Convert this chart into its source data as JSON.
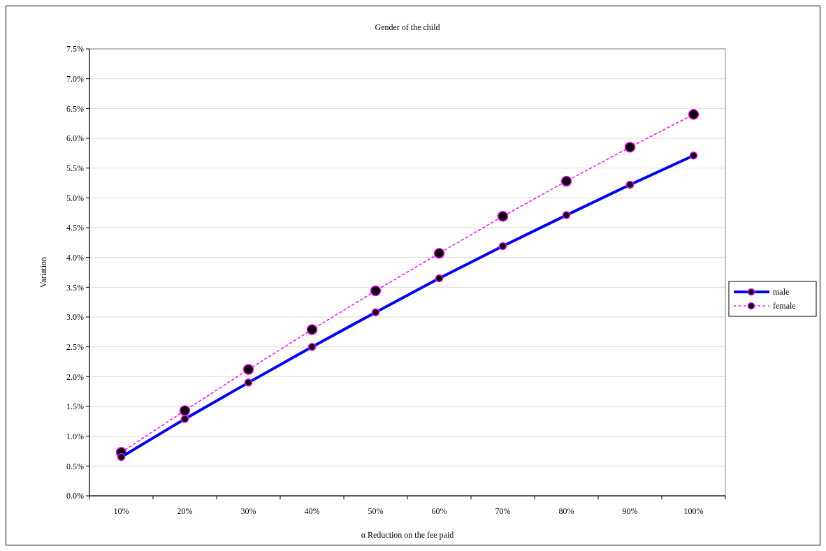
{
  "chart_data": {
    "type": "line",
    "title": "Gender of the child",
    "xlabel": "α Reduction on the fee paid",
    "ylabel": "Variation",
    "categories": [
      "10%",
      "20%",
      "30%",
      "40%",
      "50%",
      "60%",
      "70%",
      "80%",
      "90%",
      "100%"
    ],
    "series": [
      {
        "name": "male",
        "color": "#0000ff",
        "line_style": "solid",
        "values": [
          0.65,
          1.29,
          1.9,
          2.5,
          3.08,
          3.65,
          4.19,
          4.71,
          5.22,
          5.71
        ]
      },
      {
        "name": "female",
        "color": "#ff00ff",
        "line_style": "dotted",
        "values": [
          0.73,
          1.43,
          2.12,
          2.79,
          3.44,
          4.07,
          4.69,
          5.28,
          5.85,
          6.4
        ]
      }
    ],
    "ylim": [
      0,
      7.5
    ],
    "yticks": [
      {
        "value": 0,
        "label": "0.0%"
      },
      {
        "value": 0.5,
        "label": "0.5%"
      },
      {
        "value": 1,
        "label": "1.0%"
      },
      {
        "value": 1.5,
        "label": "1.5%"
      },
      {
        "value": 2,
        "label": "2.0%"
      },
      {
        "value": 2.5,
        "label": "2.5%"
      },
      {
        "value": 3,
        "label": "3.0%"
      },
      {
        "value": 3.5,
        "label": "3.5%"
      },
      {
        "value": 4,
        "label": "4.0%"
      },
      {
        "value": 4.5,
        "label": "4.5%"
      },
      {
        "value": 5,
        "label": "5.0%"
      },
      {
        "value": 5.5,
        "label": "5.5%"
      },
      {
        "value": 6,
        "label": "6.0%"
      },
      {
        "value": 6.5,
        "label": "6.5%"
      },
      {
        "value": 7,
        "label": "7.0%"
      },
      {
        "value": 7.5,
        "label": "7.5%"
      }
    ],
    "grid": "y",
    "legend": "right",
    "marker": "circle"
  }
}
